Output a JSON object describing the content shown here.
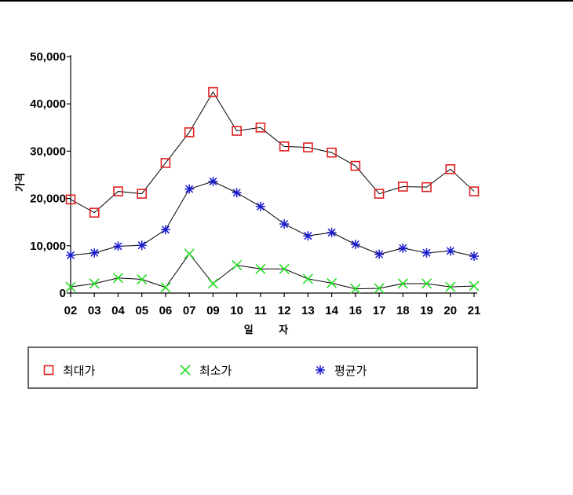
{
  "chart_data": {
    "type": "line",
    "categories": [
      "02",
      "03",
      "04",
      "05",
      "06",
      "07",
      "09",
      "10",
      "11",
      "12",
      "13",
      "14",
      "16",
      "17",
      "18",
      "19",
      "20",
      "21"
    ],
    "xlabel": "일 자",
    "ylabel": "가격",
    "ylim": [
      0,
      50000
    ],
    "yticks": [
      "0",
      "10,000",
      "20,000",
      "30,000",
      "40,000",
      "50,000"
    ],
    "grid": false,
    "legend_position": "bottom",
    "series": [
      {
        "name": "최대가",
        "marker": "square",
        "color": "#e02020",
        "values": [
          19800,
          17000,
          21500,
          21000,
          27500,
          34000,
          42500,
          34300,
          35000,
          31000,
          30800,
          29700,
          26900,
          21000,
          22500,
          22400,
          26200,
          21500
        ]
      },
      {
        "name": "최소가",
        "marker": "x",
        "color": "#22dd22",
        "values": [
          1300,
          2000,
          3200,
          2900,
          1200,
          8300,
          2000,
          5900,
          5100,
          5100,
          3000,
          2100,
          900,
          1000,
          2000,
          2000,
          1300,
          1500
        ]
      },
      {
        "name": "평균가",
        "marker": "asterisk",
        "color": "#1a1ad0",
        "values": [
          8000,
          8500,
          9900,
          10100,
          13400,
          22000,
          23600,
          21200,
          18300,
          14600,
          12100,
          12800,
          10300,
          8200,
          9500,
          8500,
          8900,
          7800
        ]
      }
    ]
  }
}
